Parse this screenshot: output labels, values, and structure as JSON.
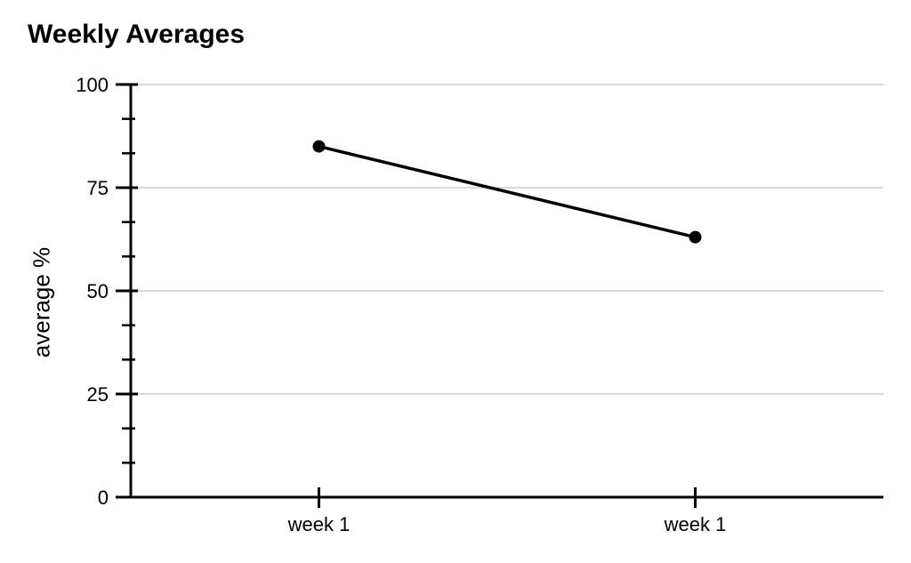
{
  "title": "Weekly Averages",
  "chart_data": {
    "type": "line",
    "title": "Weekly Averages",
    "categories": [
      "week 1",
      "week 1"
    ],
    "series": [
      {
        "name": "average %",
        "values": [
          85,
          63
        ],
        "color": "#000000",
        "marker": "circle"
      }
    ],
    "xlabel": "",
    "ylabel": "average %",
    "ylim": [
      0,
      100
    ],
    "yticks": [
      0,
      25,
      50,
      75,
      100
    ],
    "minor_ticks_per_interval": 2,
    "grid": true,
    "legend_position": "none",
    "colors": {
      "series": "#000000",
      "axis": "#000000",
      "gridline": "#d9d9d9",
      "text": "#000000",
      "background": "#ffffff"
    }
  }
}
